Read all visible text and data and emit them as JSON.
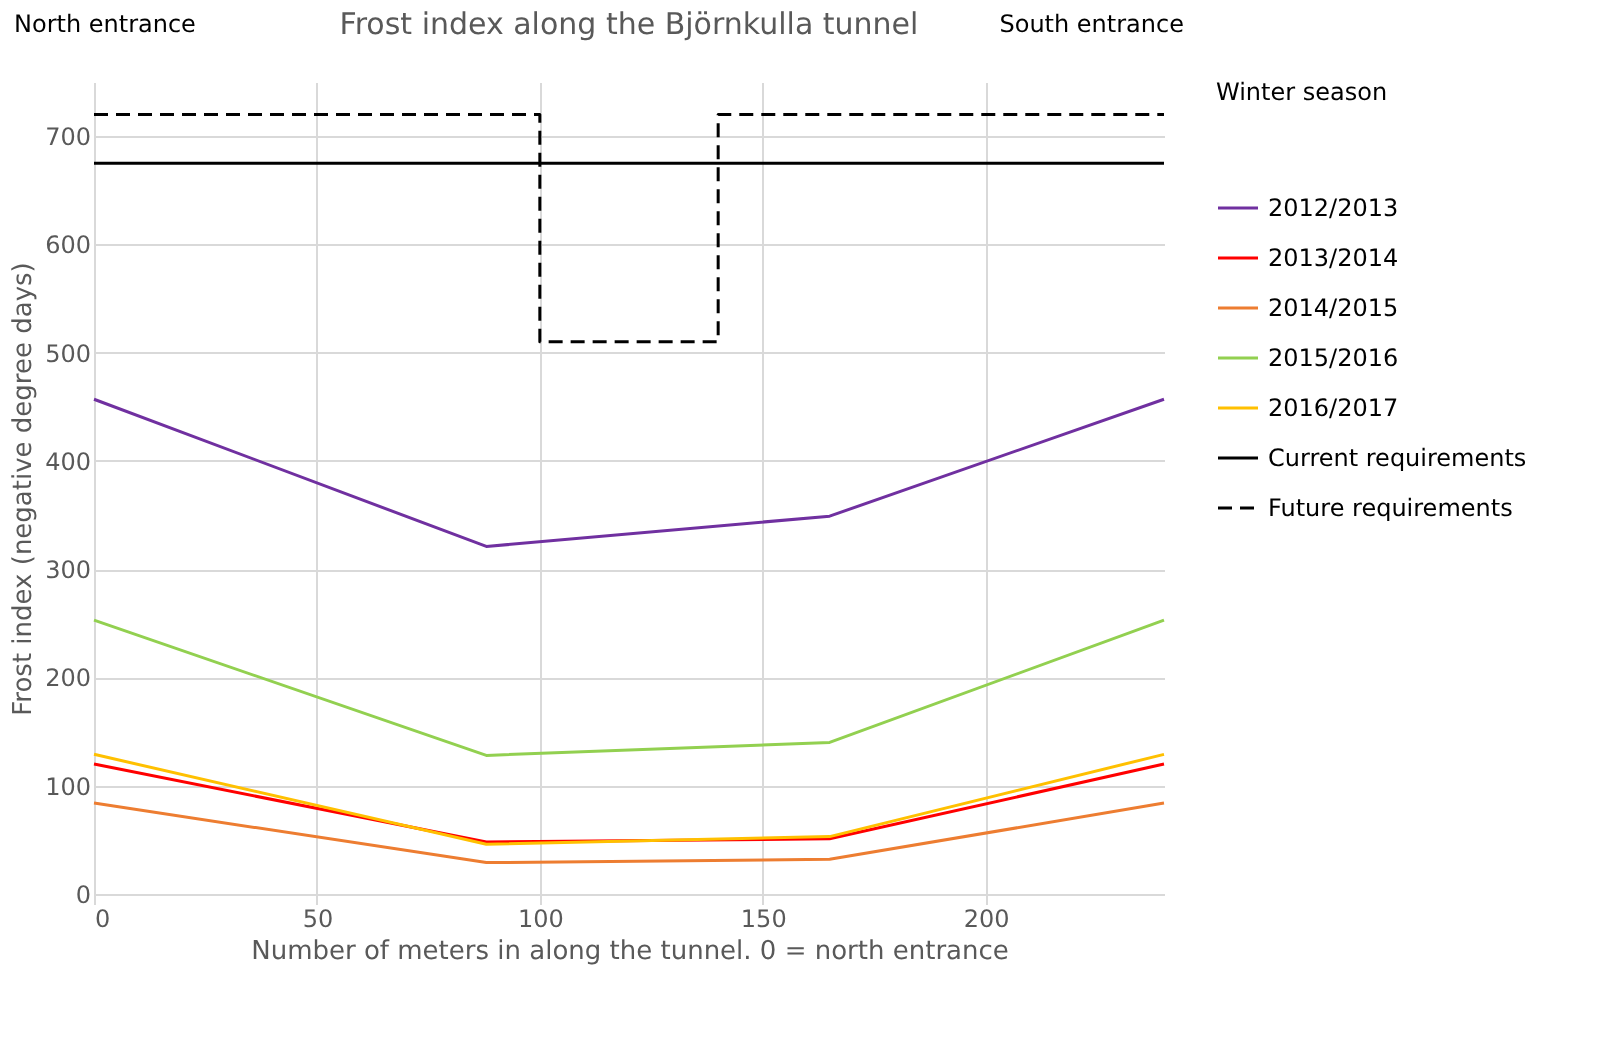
{
  "chart_data": {
    "type": "line",
    "title": "Frost index along the Björnkulla tunnel",
    "xlabel": "Number of meters in along the tunnel. 0 = north entrance",
    "ylabel": "Frost index (negative degree days)",
    "legend_title": "Winter season",
    "legend": "right",
    "grid": true,
    "xlim": [
      0,
      240
    ],
    "xticks": [
      0,
      50,
      100,
      150,
      200
    ],
    "ylim": [
      0,
      750
    ],
    "yticks": [
      0,
      100,
      200,
      300,
      400,
      500,
      600,
      700
    ],
    "annotations": [
      "North entrance",
      "South entrance"
    ],
    "series": [
      {
        "name": "2012/2013",
        "color": "#7030a0",
        "x": [
          0,
          88,
          165,
          240
        ],
        "values": [
          457,
          321,
          349,
          457
        ]
      },
      {
        "name": "2013/2014",
        "color": "#ff0000",
        "x": [
          0,
          88,
          165,
          240
        ],
        "values": [
          120,
          48,
          51,
          120
        ]
      },
      {
        "name": "2014/2015",
        "color": "#ed7d31",
        "x": [
          0,
          88,
          165,
          240
        ],
        "values": [
          84,
          29,
          32,
          84
        ]
      },
      {
        "name": "2015/2016",
        "color": "#92d050",
        "x": [
          0,
          88,
          165,
          240
        ],
        "values": [
          253,
          128,
          140,
          253
        ]
      },
      {
        "name": "2016/2017",
        "color": "#ffc000",
        "x": [
          0,
          88,
          165,
          240
        ],
        "values": [
          129,
          46,
          53,
          129
        ]
      },
      {
        "name": "Current requirements",
        "color": "#000000",
        "line_style": "solid",
        "x": [
          0,
          240
        ],
        "values": [
          675,
          675
        ]
      },
      {
        "name": "Future requirements",
        "color": "#000000",
        "line_style": "dashed",
        "x": [
          0,
          100,
          100,
          140,
          140,
          240
        ],
        "values": [
          720,
          720,
          510,
          510,
          720,
          720
        ]
      }
    ]
  }
}
